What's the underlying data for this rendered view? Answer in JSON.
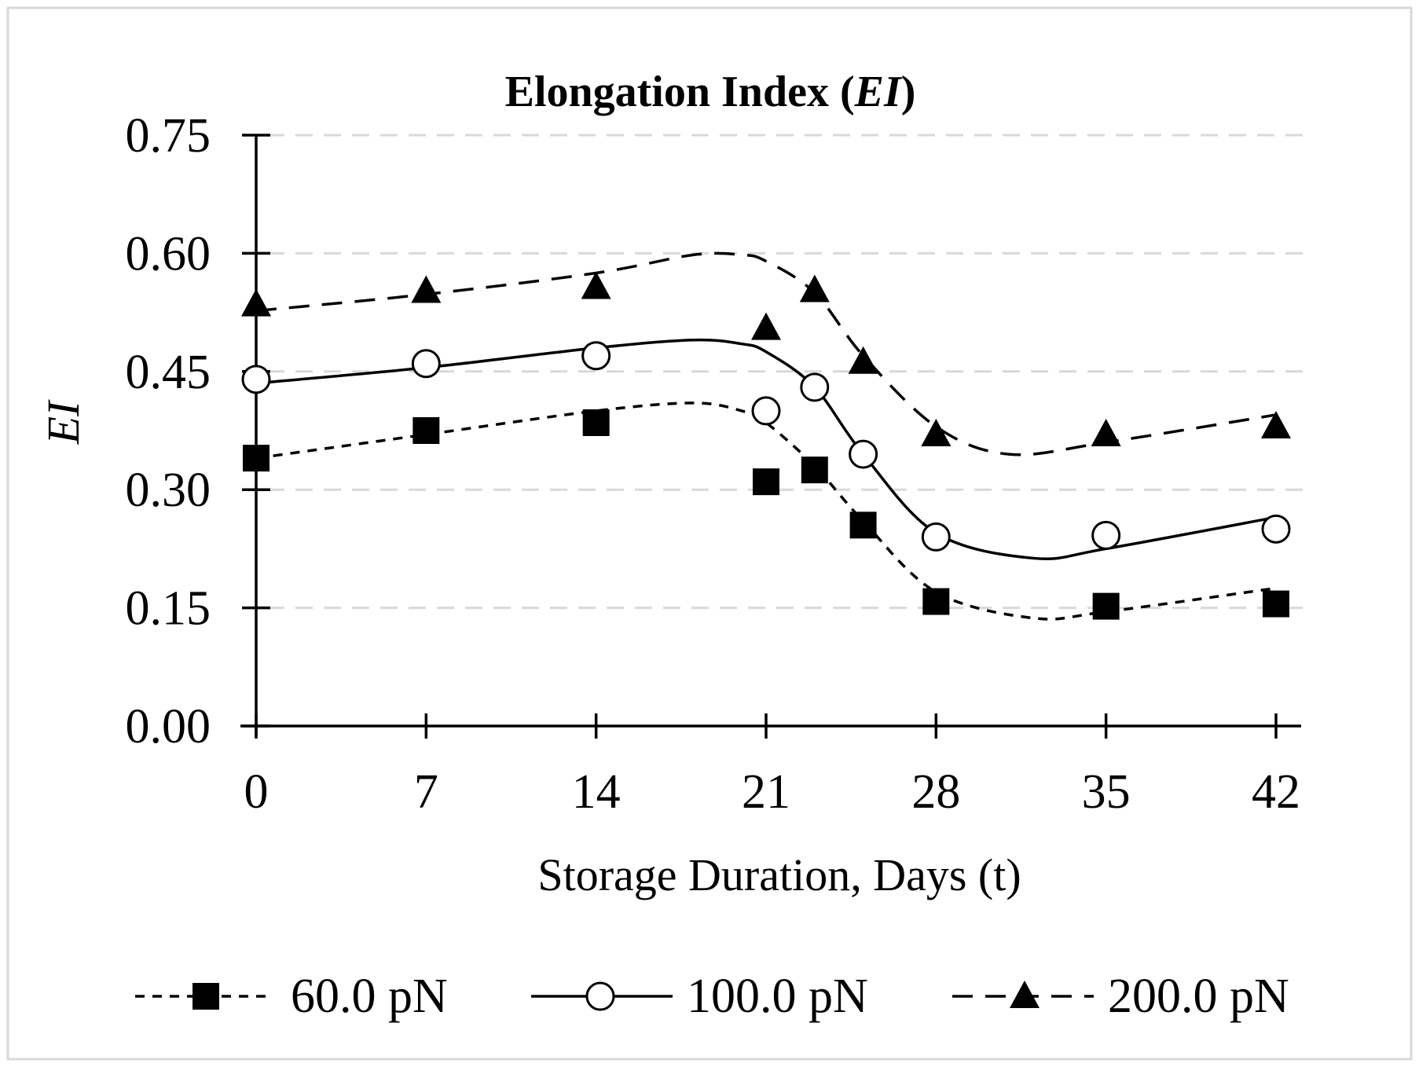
{
  "chart_data": {
    "type": "line",
    "title_main": "Elongation Index (",
    "title_italic": "EI",
    "title_close": ")",
    "xlabel": "Storage Duration, Days (t)",
    "ylabel": "EI",
    "ylim": [
      0,
      0.75
    ],
    "xlim": [
      0,
      42
    ],
    "y_ticks": [
      "0.00",
      "0.15",
      "0.30",
      "0.45",
      "0.60",
      "0.75"
    ],
    "y_tick_values": [
      0,
      0.15,
      0.3,
      0.45,
      0.6,
      0.75
    ],
    "x_ticks": [
      "0",
      "7",
      "14",
      "21",
      "28",
      "35",
      "42"
    ],
    "x_tick_values": [
      0,
      7,
      14,
      21,
      28,
      35,
      42
    ],
    "grid": "horizontal dashed",
    "legend_position": "bottom",
    "series": [
      {
        "name": "60.0 pN",
        "marker": "square",
        "line": "short-dash",
        "x": [
          0,
          7,
          14,
          21,
          23,
          25,
          28,
          35,
          42
        ],
        "values": [
          0.34,
          0.375,
          0.385,
          0.31,
          0.325,
          0.255,
          0.158,
          0.152,
          0.155
        ],
        "trend": [
          [
            0,
            0.34
          ],
          [
            7,
            0.37
          ],
          [
            14,
            0.4
          ],
          [
            18,
            0.41
          ],
          [
            20,
            0.4
          ],
          [
            21,
            0.385
          ],
          [
            23,
            0.33
          ],
          [
            25,
            0.26
          ],
          [
            28,
            0.17
          ],
          [
            32,
            0.137
          ],
          [
            35,
            0.145
          ],
          [
            42,
            0.175
          ]
        ]
      },
      {
        "name": "100.0 pN",
        "marker": "circle",
        "line": "solid",
        "x": [
          0,
          7,
          14,
          21,
          23,
          25,
          28,
          35,
          42
        ],
        "values": [
          0.44,
          0.46,
          0.47,
          0.4,
          0.43,
          0.345,
          0.24,
          0.242,
          0.25
        ],
        "trend": [
          [
            0,
            0.435
          ],
          [
            7,
            0.455
          ],
          [
            14,
            0.48
          ],
          [
            18,
            0.49
          ],
          [
            20,
            0.485
          ],
          [
            21,
            0.475
          ],
          [
            23,
            0.43
          ],
          [
            25,
            0.345
          ],
          [
            28,
            0.245
          ],
          [
            32,
            0.213
          ],
          [
            35,
            0.225
          ],
          [
            42,
            0.265
          ]
        ]
      },
      {
        "name": "200.0 pN",
        "marker": "triangle",
        "line": "long-dash",
        "x": [
          0,
          7,
          14,
          21,
          23,
          25,
          28,
          35,
          42
        ],
        "values": [
          0.535,
          0.552,
          0.557,
          0.505,
          0.553,
          0.462,
          0.37,
          0.37,
          0.38
        ],
        "trend": [
          [
            0,
            0.527
          ],
          [
            7,
            0.548
          ],
          [
            14,
            0.575
          ],
          [
            18,
            0.598
          ],
          [
            20,
            0.598
          ],
          [
            21,
            0.59
          ],
          [
            23,
            0.55
          ],
          [
            25,
            0.47
          ],
          [
            28,
            0.38
          ],
          [
            31,
            0.345
          ],
          [
            35,
            0.36
          ],
          [
            42,
            0.395
          ]
        ]
      }
    ]
  }
}
